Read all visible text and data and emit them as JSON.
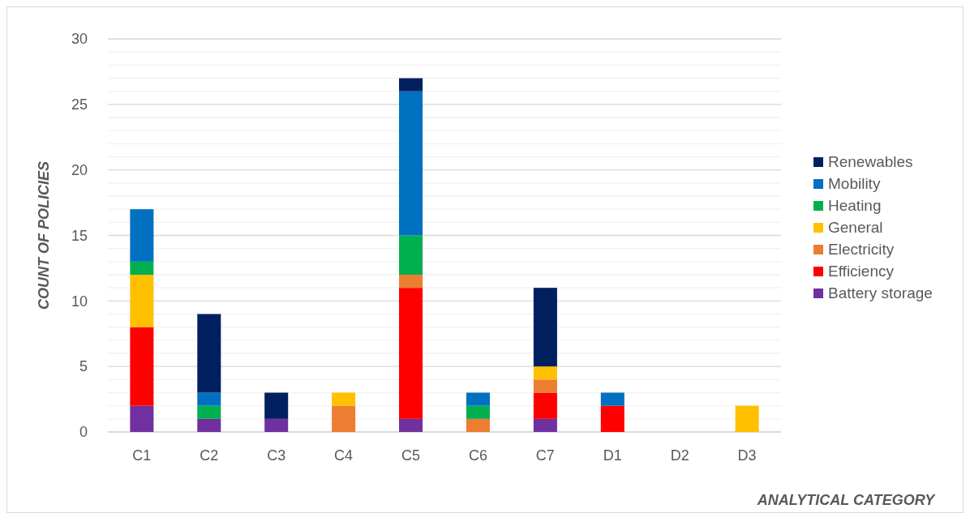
{
  "chart_data": {
    "type": "bar",
    "stacked": true,
    "xlabel": "ANALYTICAL CATEGORY",
    "ylabel": "COUNT OF POLICIES",
    "categories": [
      "C1",
      "C2",
      "C3",
      "C4",
      "C5",
      "C6",
      "C7",
      "D1",
      "D2",
      "D3"
    ],
    "series": [
      {
        "name": "Battery storage",
        "color": "#7030a0",
        "values": [
          2,
          1,
          1,
          0,
          1,
          0,
          1,
          0,
          0,
          0
        ]
      },
      {
        "name": "Efficiency",
        "color": "#ff0000",
        "values": [
          6,
          0,
          0,
          0,
          10,
          0,
          2,
          2,
          0,
          0
        ]
      },
      {
        "name": "Electricity",
        "color": "#ed7d31",
        "values": [
          0,
          0,
          0,
          2,
          1,
          1,
          1,
          0,
          0,
          0
        ]
      },
      {
        "name": "General",
        "color": "#ffc000",
        "values": [
          4,
          0,
          0,
          1,
          0,
          0,
          1,
          0,
          0,
          2
        ]
      },
      {
        "name": "Heating",
        "color": "#00b050",
        "values": [
          1,
          1,
          0,
          0,
          3,
          1,
          0,
          0,
          0,
          0
        ]
      },
      {
        "name": "Mobility",
        "color": "#0070c0",
        "values": [
          4,
          1,
          0,
          0,
          11,
          1,
          0,
          1,
          0,
          0
        ]
      },
      {
        "name": "Renewables",
        "color": "#002060",
        "values": [
          0,
          6,
          2,
          0,
          1,
          0,
          6,
          0,
          0,
          0
        ]
      }
    ],
    "ylim": [
      0,
      30
    ],
    "yticks": [
      0,
      {
        "value": 1,
        "label": null
      },
      {
        "value": 2,
        "label": null
      },
      {
        "value": 3,
        "label": null
      },
      {
        "value": 4,
        "label": null
      },
      5,
      {
        "value": 6,
        "label": null
      },
      {
        "value": 7,
        "label": null
      },
      {
        "value": 8,
        "label": null
      },
      {
        "value": 9,
        "label": null
      },
      10,
      {
        "value": 11,
        "label": null
      },
      {
        "value": 12,
        "label": null
      },
      {
        "value": 13,
        "label": null
      },
      {
        "value": 14,
        "label": null
      },
      15,
      {
        "value": 16,
        "label": null
      },
      {
        "value": 17,
        "label": null
      },
      {
        "value": 18,
        "label": null
      },
      {
        "value": 19,
        "label": null
      },
      20,
      {
        "value": 21,
        "label": null
      },
      {
        "value": 22,
        "label": null
      },
      {
        "value": 23,
        "label": null
      },
      {
        "value": 24,
        "label": null
      },
      25,
      {
        "value": 26,
        "label": null
      },
      {
        "value": 27,
        "label": null
      },
      {
        "value": 28,
        "label": null
      },
      {
        "value": 29,
        "label": null
      },
      30
    ],
    "grid": "y",
    "legend": "right"
  }
}
